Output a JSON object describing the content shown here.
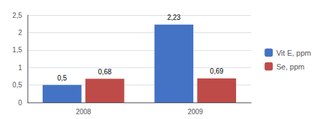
{
  "chart_data": {
    "type": "bar",
    "categories": [
      "2008",
      "2009"
    ],
    "series": [
      {
        "name": "Vit E, ppm",
        "color": "#4472C4",
        "values": [
          0.5,
          2.23
        ],
        "value_labels": [
          "0,5",
          "2,23"
        ]
      },
      {
        "name": "Se, ppm",
        "color": "#BE4B48",
        "values": [
          0.68,
          0.69
        ],
        "value_labels": [
          "0,68",
          "0,69"
        ]
      }
    ],
    "ylim": [
      0,
      2.5
    ],
    "yticks": [
      0,
      {
        "value": 0.5,
        "label": "0,5"
      },
      1,
      {
        "value": 1.5,
        "label": "1,5"
      },
      2,
      {
        "value": 2.5,
        "label": "2,5"
      }
    ],
    "grid": true,
    "data_labels": true,
    "legend": "right"
  }
}
